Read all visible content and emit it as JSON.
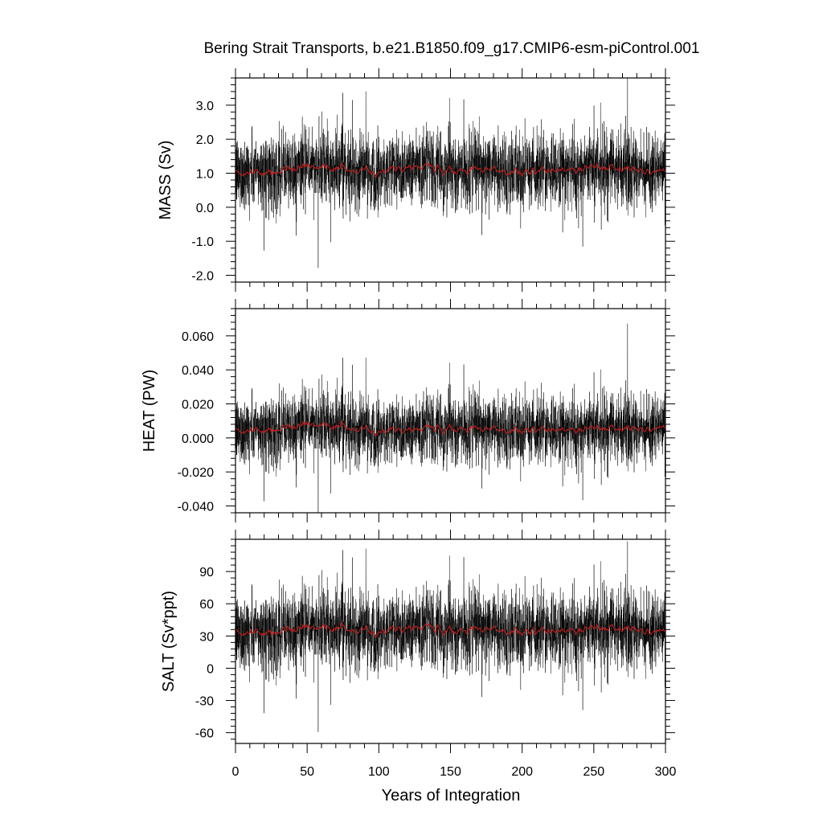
{
  "title": "Bering Strait Transports, b.e21.B1850.f09_g17.CMIP6-esm-piControl.001",
  "xlabel": "Years of Integration",
  "colors": {
    "raw": "#000000",
    "smooth": "#d01a1a",
    "axis": "#000000"
  },
  "chart_data": {
    "type": "line",
    "title": "Bering Strait Transports, b.e21.B1850.f09_g17.CMIP6-esm-piControl.001",
    "xlabel": "Years of Integration",
    "xlim": [
      0,
      300
    ],
    "xticks": [
      0,
      50,
      100,
      150,
      200,
      250,
      300
    ],
    "xtick_labels": [
      "0",
      "50",
      "100",
      "150",
      "200",
      "250",
      "300"
    ],
    "x_resolution": "monthly values over 300 years (3600 points), red line = smoothed running mean",
    "panels": [
      {
        "ylabel": "MASS (Sv)",
        "ylim": [
          -2.2,
          3.8
        ],
        "yticks": [
          -2.0,
          -1.0,
          0.0,
          1.0,
          2.0,
          3.0
        ],
        "ytick_labels": [
          "-2.0",
          "-1.0",
          "0.0",
          "1.0",
          "2.0",
          "3.0"
        ],
        "series": [
          {
            "style": "raw",
            "mean": 1.0,
            "std": 0.55,
            "max": 3.8,
            "min": -2.1
          },
          {
            "style": "smooth",
            "x": [
              0,
              25,
              50,
              75,
              100,
              125,
              150,
              175,
              200,
              225,
              250,
              275,
              300
            ],
            "values": [
              1.0,
              1.05,
              1.2,
              1.1,
              1.05,
              1.25,
              1.05,
              1.1,
              1.0,
              1.1,
              1.2,
              1.1,
              1.05
            ]
          }
        ]
      },
      {
        "ylabel": "HEAT (PW)",
        "ylim": [
          -0.044,
          0.076
        ],
        "yticks": [
          -0.04,
          -0.02,
          0.0,
          0.02,
          0.04,
          0.06
        ],
        "ytick_labels": [
          "-0.040",
          "-0.020",
          "0.000",
          "0.020",
          "0.040",
          "0.060"
        ],
        "series": [
          {
            "style": "raw",
            "mean": 0.005,
            "std": 0.01,
            "max": 0.077,
            "min": -0.044
          },
          {
            "style": "smooth",
            "x": [
              0,
              25,
              50,
              75,
              100,
              125,
              150,
              175,
              200,
              225,
              250,
              275,
              300
            ],
            "values": [
              0.004,
              0.005,
              0.008,
              0.006,
              0.004,
              0.006,
              0.005,
              0.005,
              0.004,
              0.005,
              0.006,
              0.005,
              0.006
            ]
          }
        ]
      },
      {
        "ylabel": "SALT (Sv*ppt)",
        "ylim": [
          -70,
          120
        ],
        "yticks": [
          -60,
          -30,
          0,
          30,
          60,
          90
        ],
        "ytick_labels": [
          "-60",
          "-30",
          "0",
          "30",
          "60",
          "90"
        ],
        "series": [
          {
            "style": "raw",
            "mean": 33,
            "std": 18,
            "max": 118,
            "min": -68
          },
          {
            "style": "smooth",
            "x": [
              0,
              25,
              50,
              75,
              100,
              125,
              150,
              175,
              200,
              225,
              250,
              275,
              300
            ],
            "values": [
              33,
              34,
              38,
              36,
              34,
              40,
              34,
              36,
              33,
              35,
              38,
              36,
              34
            ]
          }
        ]
      }
    ]
  }
}
